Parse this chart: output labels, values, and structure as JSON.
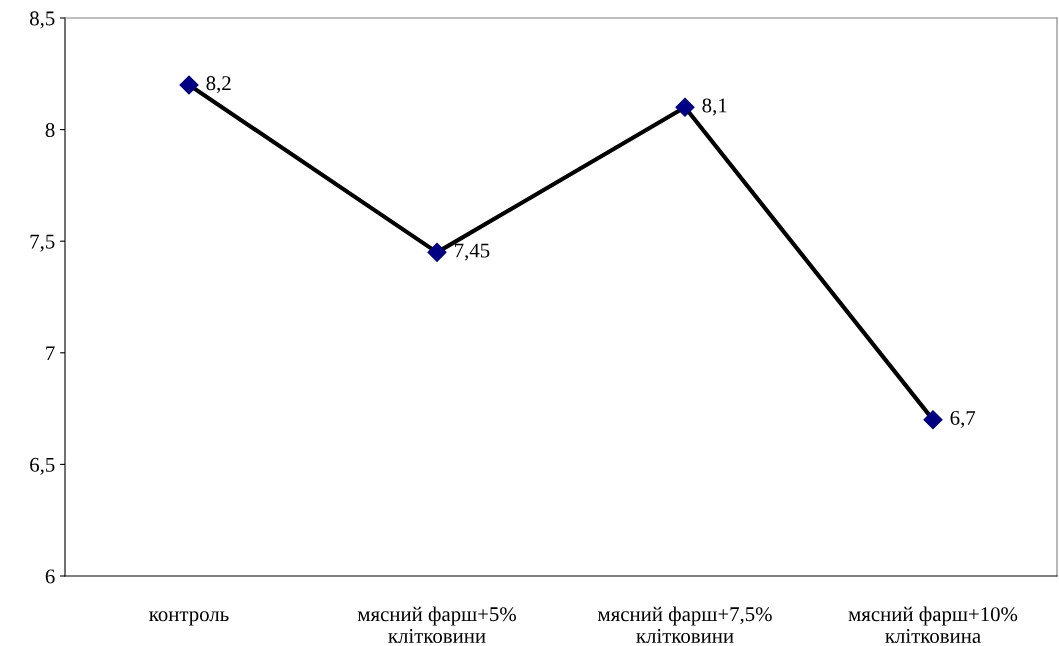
{
  "chart_data": {
    "type": "line",
    "categories": [
      "контроль",
      "мясний фарш+5%\nклітковини",
      "мясний фарш+7,5%\nклітковини",
      "мясний фарш+10%\nклітковина"
    ],
    "series": [
      {
        "color": "#000000",
        "colors": [
          "#000080",
          "#000080",
          "#000080",
          "#000080"
        ],
        "values": [
          8.2,
          7.45,
          8.1,
          6.7
        ],
        "value_labels": [
          "8,2",
          "7,45",
          "8,1",
          "6,7"
        ]
      }
    ],
    "ylim": [
      6,
      8.5
    ],
    "yticks": [
      6,
      {
        "value": 6.5,
        "label": "6,5"
      },
      7,
      {
        "value": 7.5,
        "label": "7,5"
      },
      8,
      {
        "value": 8.5,
        "label": "8,5"
      }
    ],
    "marker": "diamond",
    "line_style": "solid",
    "grid": false,
    "legend": false
  }
}
